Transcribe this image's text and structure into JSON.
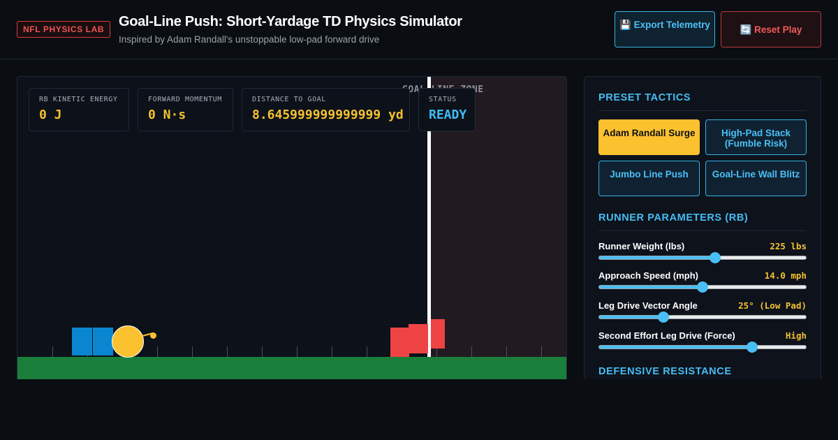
{
  "header": {
    "badge": "NFL PHYSICS LAB",
    "title": "Goal-Line Push: Short-Yardage TD Physics Simulator",
    "subtitle": "Inspired by Adam Randall's unstoppable low-pad forward drive",
    "export_label": "💾 Export Telemetry",
    "reset_label": "🔄 Reset Play"
  },
  "simulation": {
    "endzone_label": "GOAL LINE ZONE",
    "stats": [
      {
        "label": "RB KINETIC ENERGY",
        "value": "0 J"
      },
      {
        "label": "FORWARD MOMENTUM",
        "value": "0 N·s"
      },
      {
        "label": "DISTANCE TO GOAL",
        "value": "8.645999999999999 yd"
      },
      {
        "label": "STATUS",
        "value": "READY"
      }
    ]
  },
  "panel": {
    "tactics_title": "PRESET TACTICS",
    "tactics": [
      {
        "label": "Adam Randall Surge",
        "active": true
      },
      {
        "label": "High-Pad Stack (Fumble Risk)",
        "active": false
      },
      {
        "label": "Jumbo Line Push",
        "active": false
      },
      {
        "label": "Goal-Line Wall Blitz",
        "active": false
      }
    ],
    "runner_title": "RUNNER PARAMETERS (RB)",
    "params": [
      {
        "label": "Runner Weight (lbs)",
        "value": "225 lbs",
        "level": 0.56
      },
      {
        "label": "Approach Speed (mph)",
        "value": "14.0 mph",
        "level": 0.5
      },
      {
        "label": "Leg Drive Vector Angle",
        "value": "25° (Low Pad)",
        "level": 0.31
      },
      {
        "label": "Second Effort Leg Drive (Force)",
        "value": "High",
        "level": 0.74
      }
    ],
    "defense_title": "DEFENSIVE RESISTANCE"
  },
  "colors": {
    "accent": "#49bff4",
    "highlight": "#fcc12e",
    "offense": "#0a86d0",
    "defense": "#ef4444",
    "turf": "#1b7f3c"
  }
}
